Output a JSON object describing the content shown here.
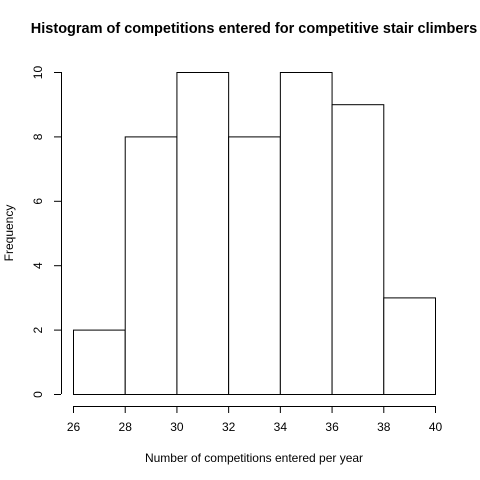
{
  "chart_data": {
    "type": "bar",
    "title": "Histogram of competitions entered for competitive stair climbers",
    "xlabel": "Number of competitions entered per year",
    "ylabel": "Frequency",
    "bins": [
      {
        "from": 26,
        "to": 28,
        "count": 2
      },
      {
        "from": 28,
        "to": 30,
        "count": 8
      },
      {
        "from": 30,
        "to": 32,
        "count": 10
      },
      {
        "from": 32,
        "to": 34,
        "count": 8
      },
      {
        "from": 34,
        "to": 36,
        "count": 10
      },
      {
        "from": 36,
        "to": 38,
        "count": 9
      },
      {
        "from": 38,
        "to": 40,
        "count": 3
      }
    ],
    "xlim": [
      26,
      40
    ],
    "ylim": [
      0,
      10
    ],
    "x_ticks": [
      "26",
      "28",
      "30",
      "32",
      "34",
      "36",
      "38",
      "40"
    ],
    "y_ticks": [
      "0",
      "2",
      "4",
      "6",
      "8",
      "10"
    ],
    "grid": false,
    "bar_fill": "#ffffff",
    "bar_stroke": "#000000"
  }
}
